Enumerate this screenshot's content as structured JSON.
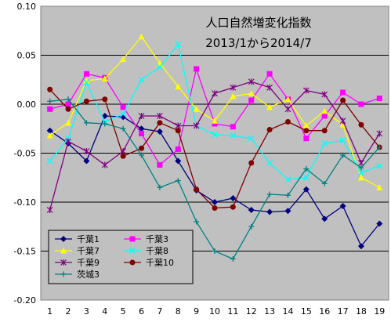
{
  "chart_data": {
    "type": "line",
    "title": "人口自然増変化指数",
    "subtitle": "2013/1から2014/7",
    "xlabel": "",
    "ylabel": "",
    "ylim": [
      -0.2,
      0.1
    ],
    "yticks": [
      "0.10",
      "0.05",
      "0.00",
      "-0.05",
      "-0.10",
      "-0.15",
      "-0.20"
    ],
    "ytick_values": [
      0.1,
      0.05,
      0,
      -0.05,
      -0.1,
      -0.15,
      -0.2
    ],
    "categories": [
      "1",
      "2",
      "3",
      "4",
      "5",
      "6",
      "7",
      "8",
      "9",
      "10",
      "11",
      "12",
      "13",
      "14",
      "15",
      "16",
      "17",
      "18",
      "19"
    ],
    "grid": true,
    "legend_position": "bottom-left",
    "plot_background": "#c0c0c0",
    "series": [
      {
        "name": "千葉1",
        "color": "#000080",
        "marker": "diamond",
        "values": [
          -0.027,
          -0.04,
          -0.058,
          -0.012,
          -0.013,
          -0.025,
          -0.028,
          -0.058,
          -0.088,
          -0.1,
          -0.096,
          -0.108,
          -0.11,
          -0.109,
          -0.087,
          -0.117,
          -0.104,
          -0.145,
          -0.122
        ]
      },
      {
        "name": "千葉3",
        "color": "#ff00ff",
        "marker": "square",
        "values": [
          -0.005,
          0.0,
          0.031,
          0.027,
          -0.003,
          -0.03,
          -0.062,
          -0.046,
          0.036,
          -0.02,
          -0.023,
          0.004,
          0.031,
          0.005,
          -0.035,
          -0.012,
          0.012,
          0.0,
          0.006
        ]
      },
      {
        "name": "千葉7",
        "color": "#ffff00",
        "marker": "triangle",
        "values": [
          -0.032,
          -0.019,
          0.024,
          0.026,
          0.046,
          0.069,
          0.042,
          0.018,
          -0.005,
          -0.017,
          0.008,
          0.011,
          -0.003,
          0.005,
          -0.022,
          -0.007,
          -0.021,
          -0.075,
          -0.085
        ]
      },
      {
        "name": "千葉8",
        "color": "#00ffff",
        "marker": "x",
        "values": [
          -0.058,
          -0.035,
          0.022,
          -0.018,
          -0.01,
          0.025,
          0.038,
          0.061,
          -0.022,
          -0.031,
          -0.032,
          -0.035,
          -0.06,
          -0.077,
          -0.075,
          -0.04,
          -0.037,
          -0.07,
          -0.063
        ]
      },
      {
        "name": "千葉9",
        "color": "#800080",
        "marker": "asterisk",
        "values": [
          -0.108,
          -0.038,
          -0.048,
          -0.062,
          -0.048,
          -0.012,
          -0.012,
          -0.022,
          -0.022,
          0.011,
          0.017,
          0.023,
          0.017,
          -0.005,
          0.014,
          0.01,
          -0.017,
          -0.06,
          -0.03
        ]
      },
      {
        "name": "千葉10",
        "color": "#800000",
        "marker": "circle",
        "values": [
          0.015,
          -0.005,
          0.003,
          0.005,
          -0.053,
          -0.045,
          -0.019,
          -0.027,
          -0.087,
          -0.106,
          -0.105,
          -0.06,
          -0.026,
          -0.018,
          -0.027,
          -0.027,
          0.004,
          -0.021,
          -0.044
        ]
      },
      {
        "name": "茨城3",
        "color": "#008080",
        "marker": "plus",
        "values": [
          0.003,
          0.005,
          -0.019,
          -0.02,
          -0.025,
          -0.052,
          -0.085,
          -0.078,
          -0.12,
          -0.15,
          -0.158,
          -0.125,
          -0.092,
          -0.093,
          -0.066,
          -0.081,
          -0.052,
          -0.065,
          -0.044
        ]
      }
    ]
  }
}
